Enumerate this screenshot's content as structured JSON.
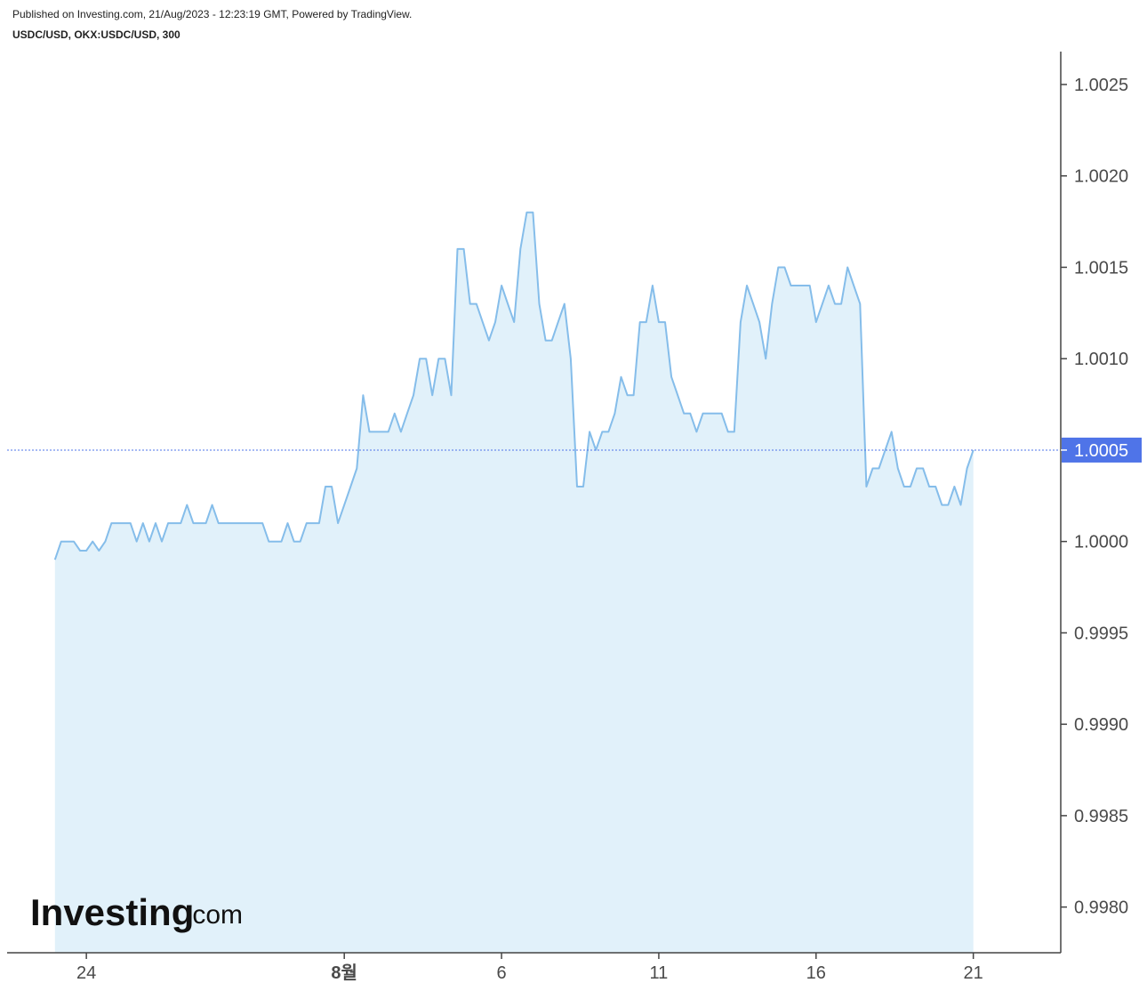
{
  "header": {
    "published": "Published on Investing.com, 21/Aug/2023 - 12:23:19 GMT, Powered by TradingView.",
    "symbol": "USDC/USD, OKX:USDC/USD, 300"
  },
  "logo": {
    "main": "Investing",
    "domain": ".com"
  },
  "colors": {
    "line": "#85bdea",
    "area": "#e1f1fa",
    "price_line": "#4f74e8",
    "price_label_bg": "#4f74e8",
    "axis": "#444444"
  },
  "chart_data": {
    "type": "area",
    "title": "USDC/USD, OKX:USDC/USD, 300",
    "xlabel": "",
    "ylabel": "",
    "ylim": [
      0.99775,
      1.00268
    ],
    "xlim": [
      -7.6,
      159.9
    ],
    "yticks": [
      1.0025,
      1.002,
      1.0015,
      1.001,
      1.0005,
      1.0,
      0.9995,
      0.999,
      0.9985,
      0.998
    ],
    "ytick_labels": [
      "1.0025",
      "1.0020",
      "1.0015",
      "1.0010",
      "1.0005",
      "1.0000",
      "0.9995",
      "0.9990",
      "0.9985",
      "0.9980"
    ],
    "xticks": [
      {
        "label": "24",
        "x": 5,
        "bold": false
      },
      {
        "label": "8월",
        "x": 46,
        "bold": true
      },
      {
        "label": "6",
        "x": 71,
        "bold": false
      },
      {
        "label": "11",
        "x": 96,
        "bold": false
      },
      {
        "label": "16",
        "x": 121,
        "bold": false
      },
      {
        "label": "21",
        "x": 146,
        "bold": false
      }
    ],
    "last_value": 1.0005,
    "last_value_label": "1.0005",
    "grid": false,
    "series": [
      {
        "values": [
          0.9999,
          1.0,
          1.0,
          1.0,
          0.99995,
          0.99995,
          1.0,
          0.99995,
          1.0,
          1.0001,
          1.0001,
          1.0001,
          1.0001,
          1.0,
          1.0001,
          1.0,
          1.0001,
          1.0,
          1.0001,
          1.0001,
          1.0001,
          1.0002,
          1.0001,
          1.0001,
          1.0001,
          1.0002,
          1.0001,
          1.0001,
          1.0001,
          1.0001,
          1.0001,
          1.0001,
          1.0001,
          1.0001,
          1.0,
          1.0,
          1.0,
          1.0001,
          1.0,
          1.0,
          1.0001,
          1.0001,
          1.0001,
          1.0003,
          1.0003,
          1.0001,
          1.0002,
          1.0003,
          1.0004,
          1.0008,
          1.0006,
          1.0006,
          1.0006,
          1.0006,
          1.0007,
          1.0006,
          1.0007,
          1.0008,
          1.001,
          1.001,
          1.0008,
          1.001,
          1.001,
          1.0008,
          1.0016,
          1.0016,
          1.0013,
          1.0013,
          1.0012,
          1.0011,
          1.0012,
          1.0014,
          1.0013,
          1.0012,
          1.0016,
          1.0018,
          1.0018,
          1.0013,
          1.0011,
          1.0011,
          1.0012,
          1.0013,
          1.001,
          1.0003,
          1.0003,
          1.0006,
          1.0005,
          1.0006,
          1.0006,
          1.0007,
          1.0009,
          1.0008,
          1.0008,
          1.0012,
          1.0012,
          1.0014,
          1.0012,
          1.0012,
          1.0009,
          1.0008,
          1.0007,
          1.0007,
          1.0006,
          1.0007,
          1.0007,
          1.0007,
          1.0007,
          1.0006,
          1.0006,
          1.0012,
          1.0014,
          1.0013,
          1.0012,
          1.001,
          1.0013,
          1.0015,
          1.0015,
          1.0014,
          1.0014,
          1.0014,
          1.0014,
          1.0012,
          1.0013,
          1.0014,
          1.0013,
          1.0013,
          1.0015,
          1.0014,
          1.0013,
          1.0003,
          1.0004,
          1.0004,
          1.0005,
          1.0006,
          1.0004,
          1.0003,
          1.0003,
          1.0004,
          1.0004,
          1.0003,
          1.0003,
          1.0002,
          1.0002,
          1.0003,
          1.0002,
          1.0004,
          1.0005
        ]
      }
    ]
  }
}
